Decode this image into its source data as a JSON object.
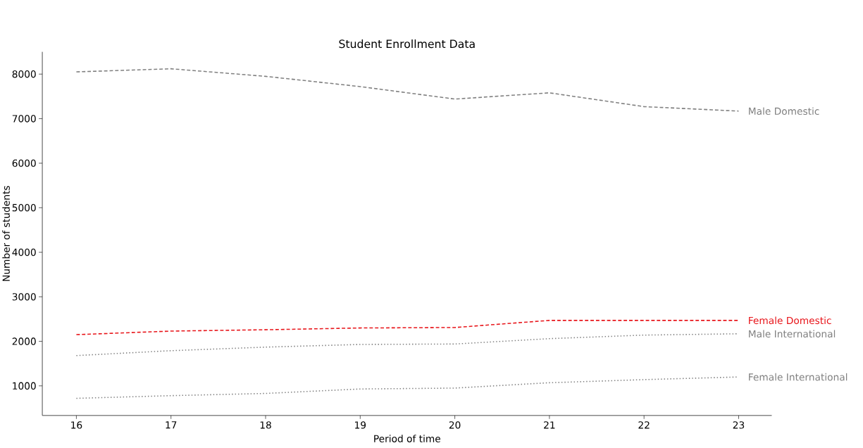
{
  "chart_data": {
    "type": "line",
    "title": "Student Enrollment Data",
    "xlabel": "Period of time",
    "ylabel": "Number of students",
    "x": [
      16,
      17,
      18,
      19,
      20,
      21,
      22,
      23
    ],
    "series": [
      {
        "name": "Male Domestic",
        "color": "#808080",
        "line_style": "dashed",
        "values": [
          8050,
          8120,
          7950,
          7720,
          7440,
          7580,
          7270,
          7170
        ]
      },
      {
        "name": "Female Domestic",
        "color": "#e8161b",
        "line_style": "dashed",
        "values": [
          2150,
          2230,
          2260,
          2300,
          2310,
          2470,
          2470,
          2470
        ]
      },
      {
        "name": "Male International",
        "color": "#808080",
        "line_style": "dotted",
        "values": [
          1680,
          1790,
          1870,
          1930,
          1940,
          2060,
          2140,
          2170
        ]
      },
      {
        "name": "Female International",
        "color": "#808080",
        "line_style": "dotted",
        "values": [
          720,
          780,
          830,
          930,
          950,
          1070,
          1140,
          1200
        ]
      }
    ],
    "xlim": [
      15.64,
      23.35
    ],
    "ylim": [
      335,
      8500
    ],
    "xticks": [
      16,
      17,
      18,
      19,
      20,
      21,
      22,
      23
    ],
    "yticks": [
      1000,
      2000,
      3000,
      4000,
      5000,
      6000,
      7000,
      8000
    ],
    "grid": false,
    "legend": false
  }
}
